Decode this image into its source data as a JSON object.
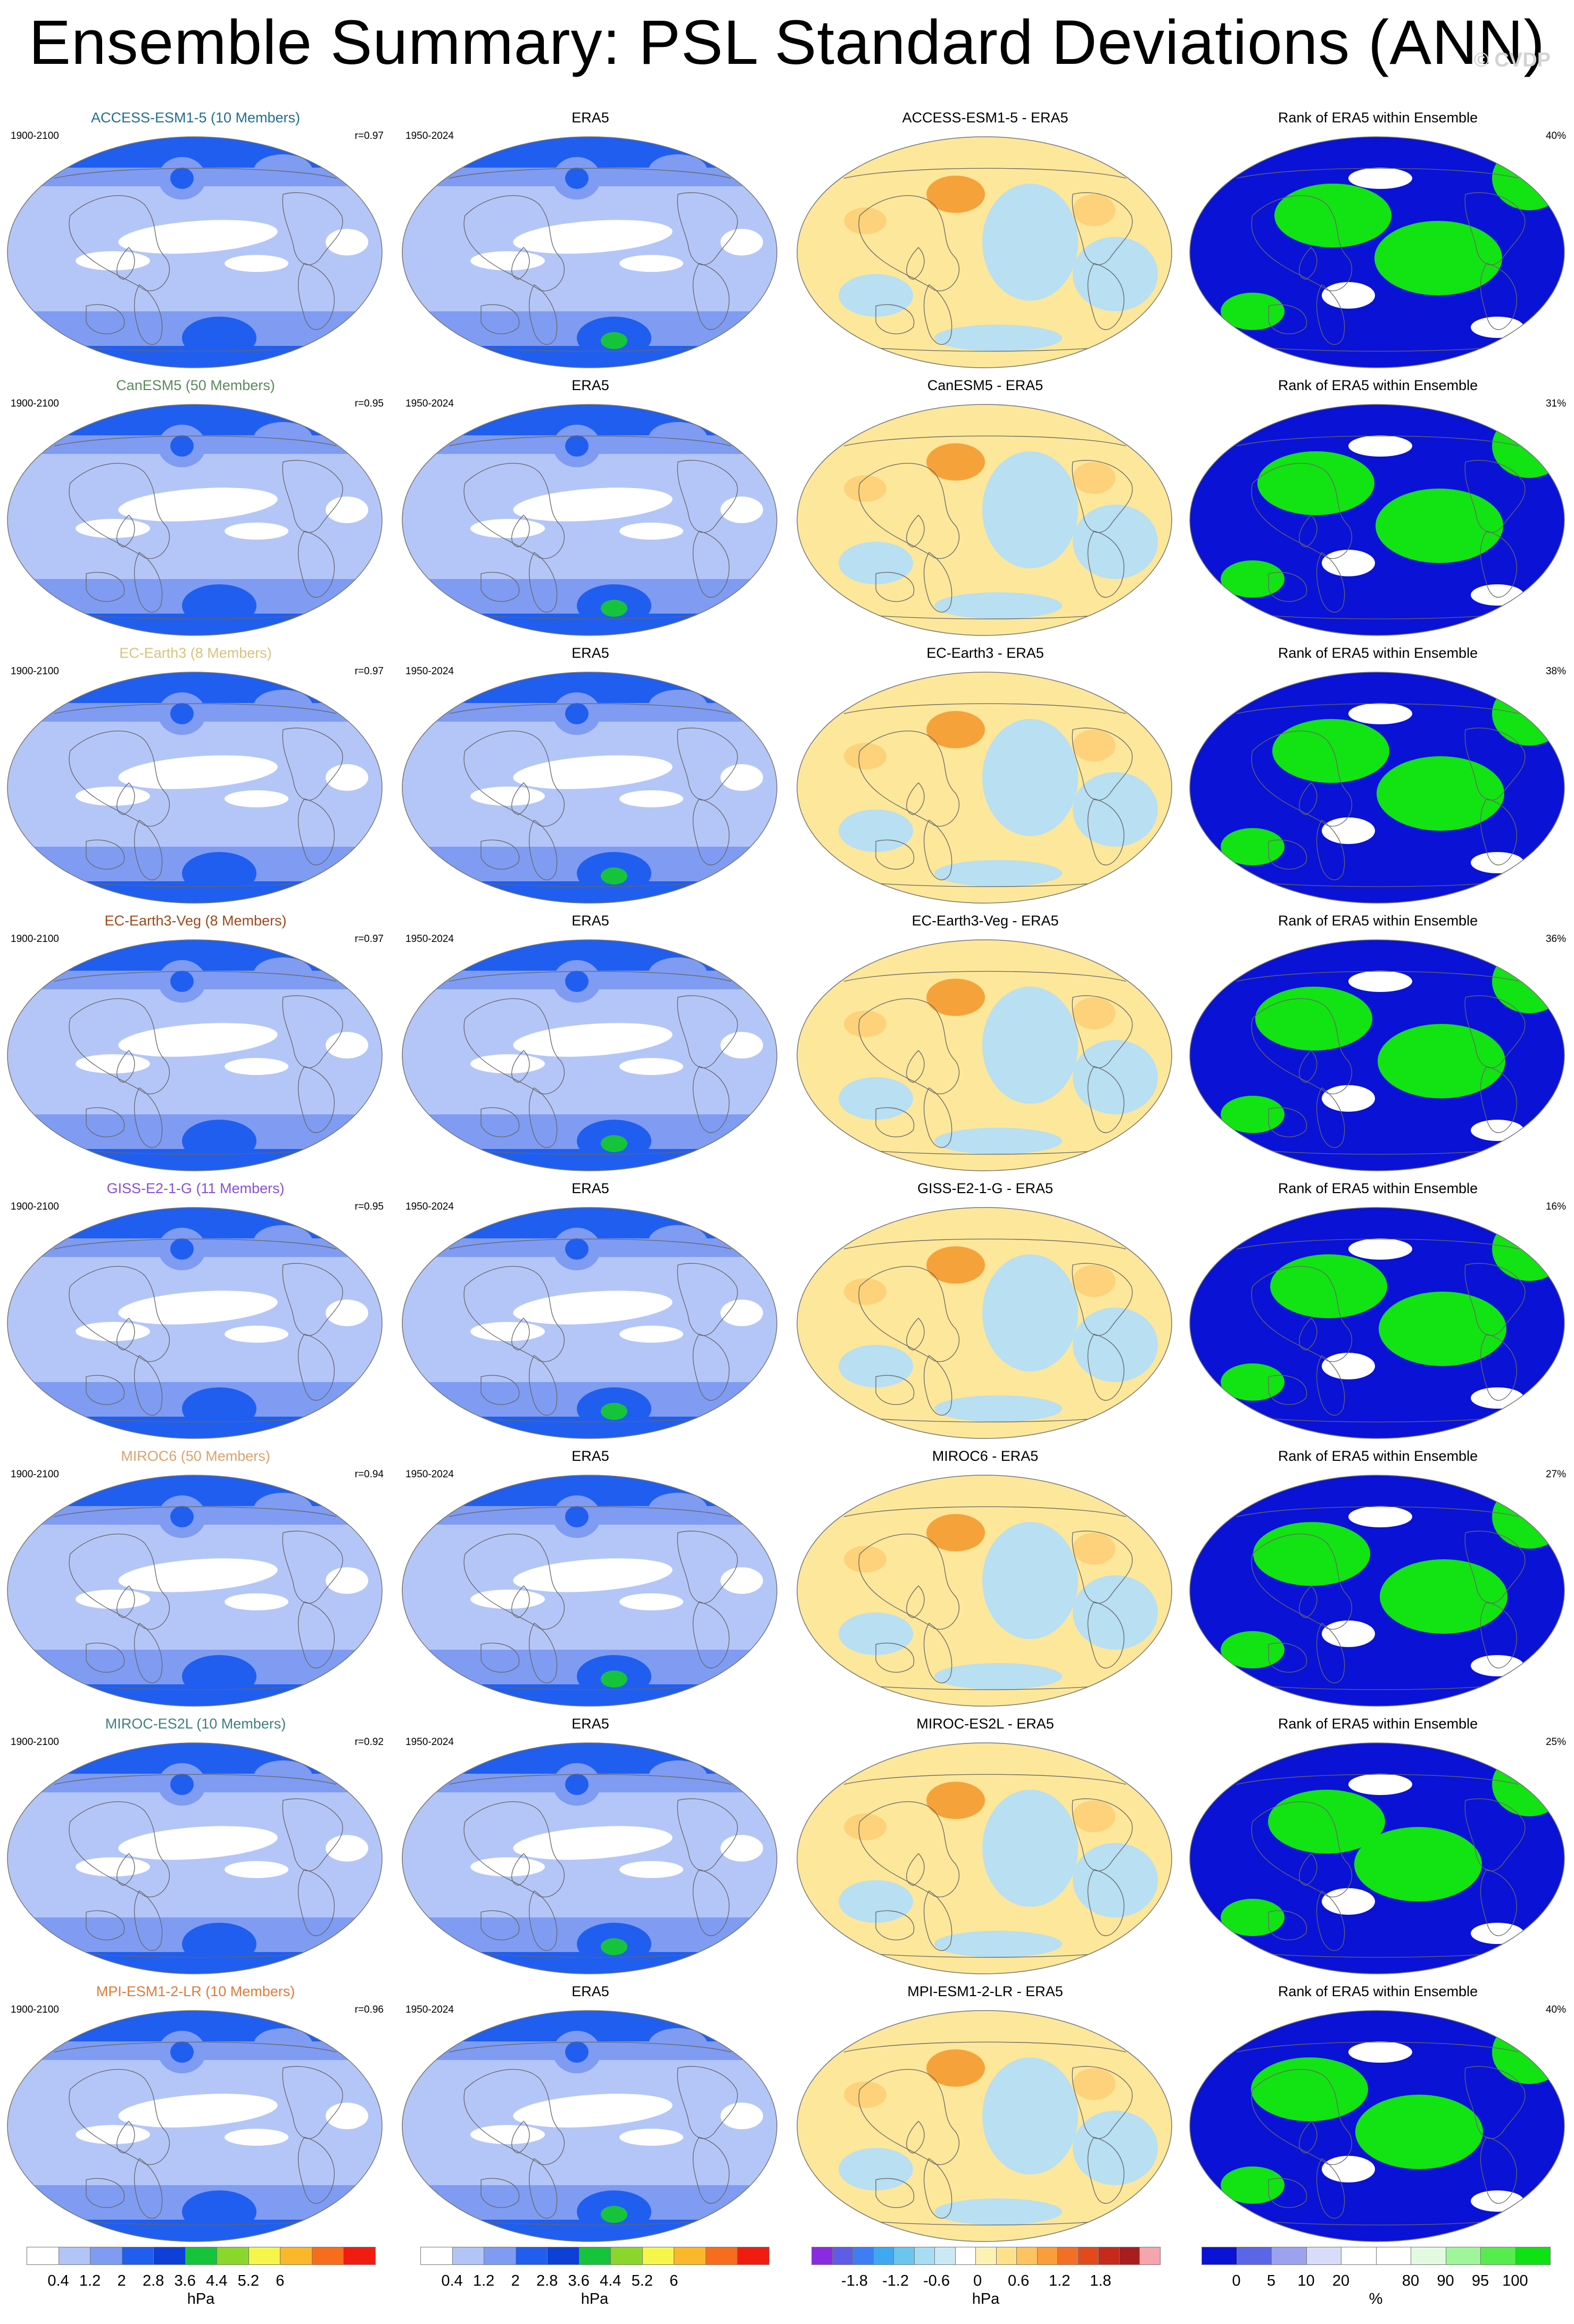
{
  "title": "Ensemble Summary: PSL Standard Deviations (ANN)",
  "watermark": "© CVDP",
  "colors": {
    "sd": [
      "#ffffff",
      "#b3c4f7",
      "#7f9cf2",
      "#205ef0",
      "#0c40d6",
      "#16c43c",
      "#8bd62b",
      "#f5f54a",
      "#f9b72a",
      "#f86d1b",
      "#f01c10"
    ],
    "diff": [
      "#8a2be2",
      "#5d5de8",
      "#3e7ef5",
      "#3fa8f0",
      "#6bc6ef",
      "#a7ddf2",
      "#cbe9f4",
      "#ffffff",
      "#fdf2b3",
      "#fee28a",
      "#fdc360",
      "#fa9e3a",
      "#f46f26",
      "#e24a1c",
      "#c7291b",
      "#a81e1e",
      "#f4a5ad"
    ],
    "rank": [
      "#0a12d6",
      "#5b66e6",
      "#9ba3ef",
      "#d9dcf9",
      "#ffffff",
      "#ffffff",
      "#e2fae0",
      "#9ef59a",
      "#56ec4d",
      "#0ee213"
    ],
    "rank_lo": "#0a12d6",
    "rank_hi": "#12e312",
    "rank_mid": "#ffffff",
    "sd_low": "#b4c6f8",
    "sd_mid": "#7f9cf2",
    "sd_high": "#205ef0",
    "sd_green": "#16c43c",
    "diff_neg": "#b8dff2",
    "diff_pos": "#fde79a",
    "diff_hot": "#f6a23a"
  },
  "rows": [
    {
      "model": "ACCESS-ESM1-5 (10 Members)",
      "model_color": "#1f6f8f",
      "period": "1900-2100",
      "r": "r=0.97",
      "diff_title": "ACCESS-ESM1-5 - ERA5",
      "rank_pct": "40%"
    },
    {
      "model": "CanESM5 (50 Members)",
      "model_color": "#5a8a5a",
      "period": "1900-2100",
      "r": "r=0.95",
      "diff_title": "CanESM5 - ERA5",
      "rank_pct": "31%"
    },
    {
      "model": "EC-Earth3 (8 Members)",
      "model_color": "#d9c27a",
      "period": "1900-2100",
      "r": "r=0.97",
      "diff_title": "EC-Earth3 - ERA5",
      "rank_pct": "38%"
    },
    {
      "model": "EC-Earth3-Veg (8 Members)",
      "model_color": "#9b4a1a",
      "period": "1900-2100",
      "r": "r=0.97",
      "diff_title": "EC-Earth3-Veg - ERA5",
      "rank_pct": "36%"
    },
    {
      "model": "GISS-E2-1-G (11 Members)",
      "model_color": "#8a4fd6",
      "period": "1900-2100",
      "r": "r=0.95",
      "diff_title": "GISS-E2-1-G - ERA5",
      "rank_pct": "16%"
    },
    {
      "model": "MIROC6 (50 Members)",
      "model_color": "#d9a36b",
      "period": "1900-2100",
      "r": "r=0.94",
      "diff_title": "MIROC6 - ERA5",
      "rank_pct": "27%"
    },
    {
      "model": "MIROC-ES2L (10 Members)",
      "model_color": "#3f7f7f",
      "period": "1900-2100",
      "r": "r=0.92",
      "diff_title": "MIROC-ES2L - ERA5",
      "rank_pct": "25%"
    },
    {
      "model": "MPI-ESM1-2-LR (10 Members)",
      "model_color": "#e07a3a",
      "period": "1900-2100",
      "r": "r=0.96",
      "diff_title": "MPI-ESM1-2-LR - ERA5",
      "rank_pct": "40%"
    }
  ],
  "obs_title": "ERA5",
  "obs_period": "1950-2024",
  "rank_title": "Rank of ERA5 within Ensemble",
  "colorbars": {
    "sd_ticks": [
      "0.4",
      "1.2",
      "2",
      "2.8",
      "3.6",
      "4.4",
      "5.2",
      "6"
    ],
    "diff_ticks": [
      "-1.8",
      "-1.2",
      "-0.6",
      "0",
      "0.6",
      "1.2",
      "1.8"
    ],
    "rank_ticks": [
      "0",
      "5",
      "10",
      "20",
      "80",
      "90",
      "95",
      "100"
    ],
    "sd_unit": "hPa",
    "diff_unit": "hPa",
    "rank_unit": "%"
  }
}
